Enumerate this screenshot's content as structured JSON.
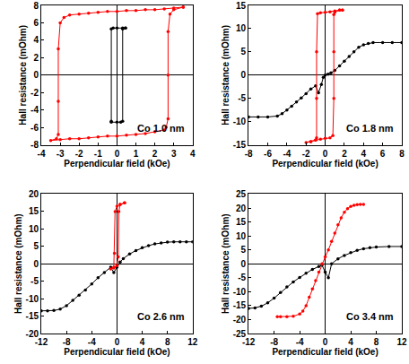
{
  "chart_data": [
    {
      "type": "line",
      "x_label": "Perpendicular field (kOe)",
      "y_label": "Hall resistance (mOhm)",
      "annotation": "Co 1.0 nm",
      "xlim": [
        -4,
        4
      ],
      "ylim": [
        -8,
        8
      ],
      "xticks": [
        -4,
        -3,
        -2,
        -1,
        0,
        1,
        2,
        3,
        4
      ],
      "yticks": [
        -8,
        -6,
        -4,
        -2,
        0,
        2,
        4,
        6,
        8
      ],
      "grid": false,
      "series": [
        {
          "color": "#ff0000",
          "marker": "circle",
          "line_style": "solid",
          "x": [
            3.5,
            3,
            2.5,
            2,
            1.5,
            1,
            0.5,
            0,
            -0.5,
            -1,
            -1.5,
            -2,
            -2.5,
            -2.8,
            -3,
            -3.1,
            -3.1,
            -3.1,
            -3.2,
            -3.5,
            -3,
            -2.5,
            -2,
            -1.5,
            -1,
            -0.5,
            0,
            0.5,
            1,
            1.5,
            2,
            2.5,
            2.6,
            2.7,
            2.7,
            2.7,
            2.8,
            3,
            3.5
          ],
          "values": [
            7.8,
            7.7,
            7.6,
            7.5,
            7.5,
            7.4,
            7.4,
            7.3,
            7.3,
            7.2,
            7.1,
            7.0,
            6.9,
            6.6,
            6.0,
            3,
            -3,
            -6.8,
            -7.3,
            -7.5,
            -7.4,
            -7.3,
            -7.3,
            -7.2,
            -7.1,
            -7.0,
            -7.0,
            -6.9,
            -6.8,
            -6.7,
            -6.5,
            -6.3,
            -6.0,
            -5,
            0,
            5,
            7,
            7.5,
            7.8
          ]
        },
        {
          "color": "#000000",
          "marker": "circle",
          "line_style": "solid",
          "x": [
            0.45,
            0.3,
            0,
            -0.2,
            -0.3,
            -0.3,
            -0.3,
            0,
            0.2,
            0.3,
            0.3,
            0.45
          ],
          "values": [
            5.4,
            5.4,
            5.4,
            5.4,
            5.3,
            -5.3,
            -5.4,
            -5.4,
            -5.4,
            -5.3,
            5.3,
            5.4
          ]
        }
      ]
    },
    {
      "type": "line",
      "x_label": "Perpendicular field (kOe)",
      "y_label": "Hall resistance (mOhm)",
      "annotation": "Co 1.8 nm",
      "xlim": [
        -8,
        8
      ],
      "ylim": [
        -15,
        15
      ],
      "xticks": [
        -8,
        -6,
        -4,
        -2,
        0,
        2,
        4,
        6,
        8
      ],
      "yticks": [
        -15,
        -10,
        -5,
        0,
        5,
        10,
        15
      ],
      "grid": false,
      "series": [
        {
          "color": "#000000",
          "marker": "circle",
          "line_style": "solid",
          "x": [
            -8,
            -7,
            -6,
            -5,
            -4.5,
            -4,
            -3.5,
            -3,
            -2.5,
            -2,
            -1.5,
            -1,
            -0.7,
            -0.4,
            -0.2,
            0,
            0.3,
            0.6,
            1,
            1.5,
            2,
            2.5,
            3,
            3.5,
            4,
            4.5,
            5,
            6,
            7,
            8
          ],
          "values": [
            -9,
            -9,
            -9,
            -8.8,
            -8.3,
            -7.5,
            -6.7,
            -5.8,
            -4.9,
            -4,
            -3,
            -2.3,
            -3.8,
            -2,
            -0.5,
            0,
            0.2,
            0.5,
            1,
            2,
            3,
            4,
            5,
            6,
            6.5,
            6.8,
            7,
            7,
            7,
            7
          ]
        },
        {
          "color": "#ff0000",
          "marker": "circle",
          "line_style": "solid",
          "x": [
            1.8,
            1.5,
            1,
            0.5,
            0,
            -0.5,
            -0.8,
            -0.9,
            -0.9,
            -0.9,
            -1,
            -1.5,
            -2,
            -1.5,
            -1,
            -0.5,
            0,
            0.5,
            0.8,
            0.9,
            0.9,
            0.9,
            1,
            1.5,
            1.8
          ],
          "values": [
            14,
            14,
            13.8,
            13.6,
            13.5,
            13.4,
            13.2,
            5,
            -5,
            -13.5,
            -14,
            -14.3,
            -14.5,
            -14.3,
            -14,
            -13.8,
            -13.6,
            -13.5,
            -13,
            -5,
            5,
            13,
            13.5,
            14,
            14
          ]
        }
      ]
    },
    {
      "type": "line",
      "x_label": "Perpendicular field (kOe)",
      "y_label": "Hall resistance (mOhm)",
      "annotation": "Co 2.6 nm",
      "xlim": [
        -12,
        12
      ],
      "ylim": [
        -20,
        20
      ],
      "xticks": [
        -12,
        -8,
        -4,
        0,
        4,
        8,
        12
      ],
      "yticks": [
        -20,
        -15,
        -10,
        -5,
        0,
        5,
        10,
        15,
        20
      ],
      "grid": false,
      "series": [
        {
          "color": "#000000",
          "marker": "circle",
          "line_style": "solid",
          "x": [
            -12,
            -11,
            -10,
            -9,
            -8,
            -7,
            -6,
            -5,
            -4,
            -3,
            -2,
            -1,
            -0.5,
            0,
            0.5,
            1,
            2,
            3,
            4,
            5,
            6,
            7,
            8,
            9,
            10,
            11,
            12
          ],
          "values": [
            -13.5,
            -13.5,
            -13.4,
            -13,
            -12,
            -10.5,
            -9,
            -7.5,
            -5.8,
            -4,
            -2.5,
            -1,
            -2.5,
            -1,
            0.5,
            1.5,
            2.8,
            3.8,
            4.6,
            5.2,
            5.7,
            6,
            6.2,
            6.3,
            6.3,
            6.3,
            6.3
          ]
        },
        {
          "color": "#ff0000",
          "marker": "circle",
          "line_style": "solid",
          "x": [
            1.2,
            0.5,
            0,
            -0.3,
            -0.4,
            -0.5,
            -1,
            -0.5,
            0,
            0.2,
            0.3,
            0.5,
            1.2
          ],
          "values": [
            17.5,
            17,
            16.5,
            15,
            3,
            -1,
            -1.5,
            -1.2,
            -0.5,
            2,
            15,
            17,
            17.5
          ]
        }
      ]
    },
    {
      "type": "line",
      "x_label": "Perpendicular field (kOe)",
      "y_label": "Hall resistance (mOhm)",
      "annotation": "Co 3.4 nm",
      "xlim": [
        -12,
        12
      ],
      "ylim": [
        -25,
        25
      ],
      "xticks": [
        -12,
        -8,
        -4,
        0,
        4,
        8,
        12
      ],
      "yticks": [
        -25,
        -20,
        -15,
        -10,
        -5,
        0,
        5,
        10,
        15,
        20,
        25
      ],
      "grid": false,
      "series": [
        {
          "color": "#000000",
          "marker": "circle",
          "line_style": "solid",
          "x": [
            -12,
            -11,
            -10,
            -9,
            -8,
            -7,
            -6,
            -5,
            -4,
            -3,
            -2,
            -1,
            -0.5,
            0,
            0.5,
            1,
            2,
            3,
            4,
            5,
            6,
            7,
            8,
            10,
            12
          ],
          "values": [
            -16,
            -15.8,
            -15.2,
            -14,
            -12.3,
            -10.3,
            -8.3,
            -6.5,
            -4.9,
            -3.4,
            -2,
            -1,
            -0.5,
            -3,
            -5,
            0,
            1.8,
            3,
            4,
            4.8,
            5.4,
            5.8,
            6,
            6.2,
            6.2
          ]
        },
        {
          "color": "#ff0000",
          "marker": "circle",
          "line_style": "solid",
          "x": [
            -7.5,
            -7,
            -6,
            -5,
            -4,
            -3.5,
            -3,
            -2.5,
            -2,
            -1.5,
            -1,
            -0.5,
            0,
            0.5,
            1,
            1.5,
            2,
            2.5,
            3,
            3.5,
            4,
            4.5,
            5,
            5.5,
            6
          ],
          "values": [
            -19,
            -19,
            -19,
            -18.8,
            -18,
            -17,
            -15,
            -12,
            -9,
            -6,
            -3,
            0,
            2.5,
            5,
            8,
            11,
            14,
            16.5,
            18.5,
            19.8,
            20.6,
            21,
            21.2,
            21.3,
            21.3
          ]
        }
      ]
    }
  ]
}
